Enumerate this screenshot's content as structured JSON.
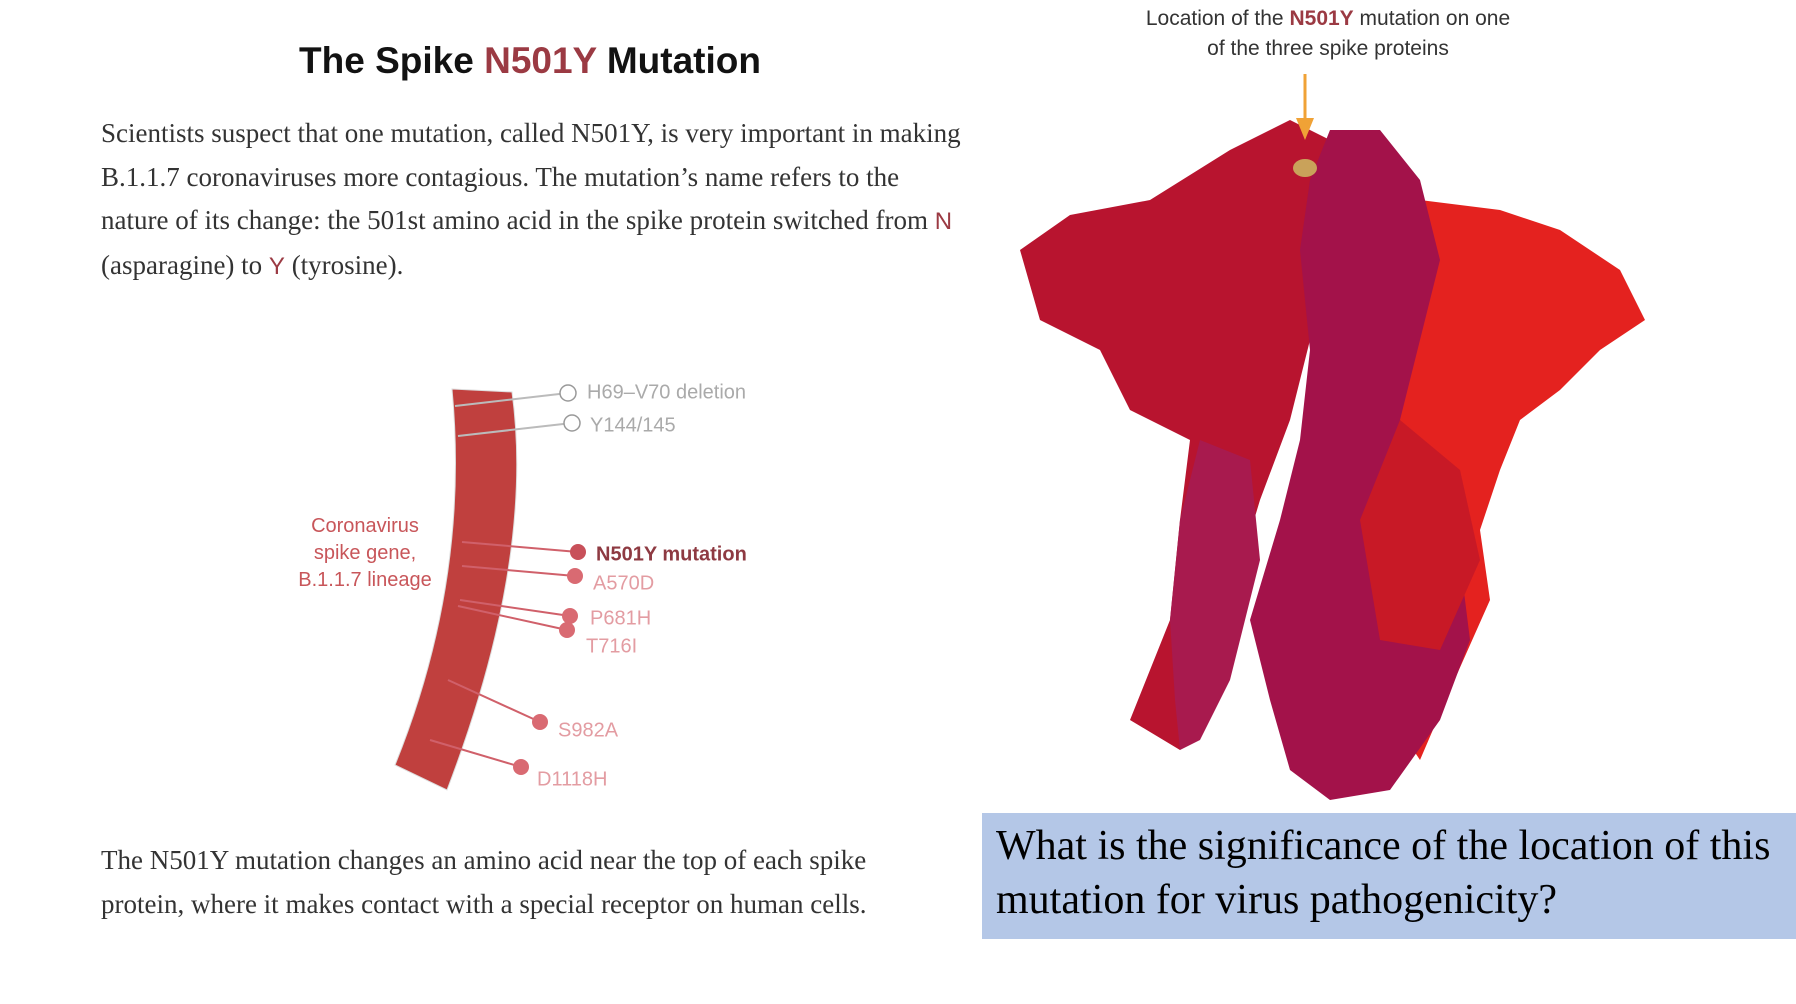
{
  "title": {
    "before": "The Spike",
    "highlight": "N501Y",
    "after": "Mutation"
  },
  "intro": {
    "text": "Scientists suspect that one mutation, called N501Y, is very important in making B.1.1.7 coronaviruses more contagious. The mutation’s name refers to the nature of its change: the 501st amino acid in the spike protein switched from",
    "from": "N",
    "middle": "(asparagine) to",
    "to": "Y",
    "end": "(tyrosine)."
  },
  "gene_diagram": {
    "label": "Coronavirus spike gene, B.1.1.7 lineage",
    "mutations": [
      "H69–V70 deletion",
      "Y144/145",
      "N501Y mutation",
      "A570D",
      "P681H",
      "T716I",
      "S982A",
      "D1118H"
    ]
  },
  "outro": "The N501Y mutation changes an amino acid near the top of each spike protein, where it makes contact with a special receptor on human cells.",
  "structure_caption": {
    "before": "Location of the",
    "highlight": "N501Y",
    "after": "mutation on one of the three spike proteins"
  },
  "question": "What is the significance of the location of this mutation for virus pathogenicity?"
}
